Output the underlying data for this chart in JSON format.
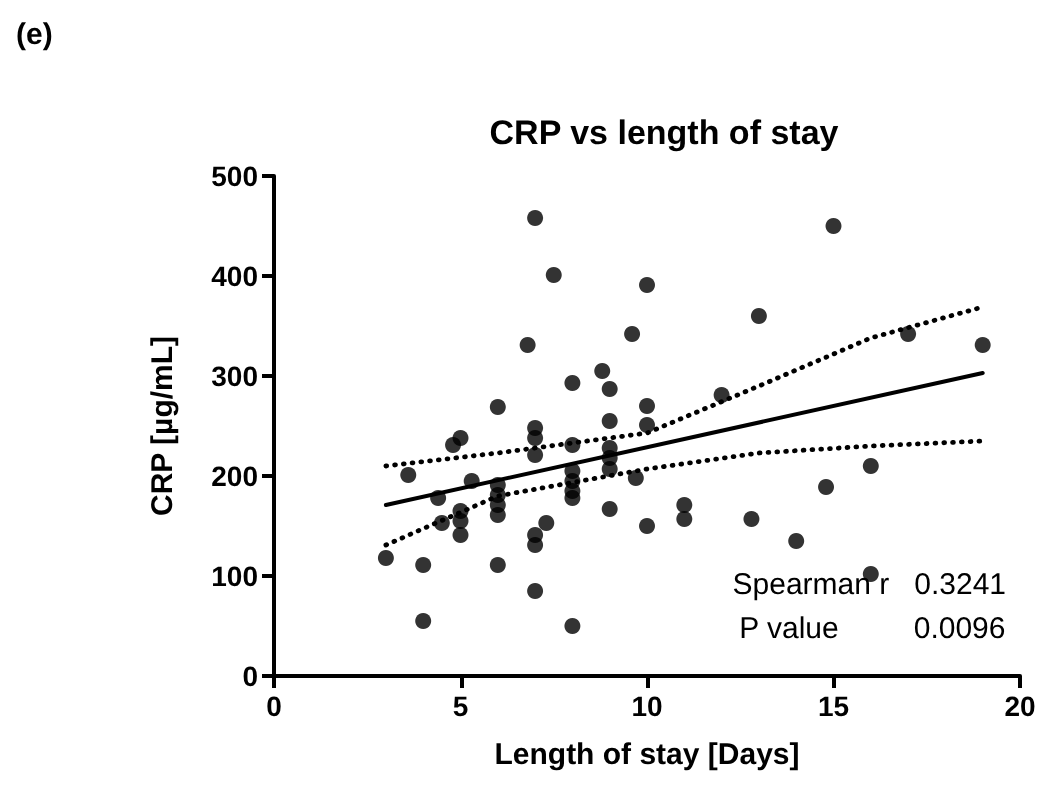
{
  "chart_data": {
    "type": "scatter",
    "title": "CRP vs length of stay",
    "xlabel": "Length of stay [Days]",
    "ylabel": "CRP [µg/mL]",
    "annotations": [
      "(e)",
      "Spearman r   0.3241",
      "P value         0.0096"
    ],
    "xlim": [
      0,
      20
    ],
    "xticks": [
      0,
      5,
      10,
      15,
      20
    ],
    "ylim": [
      0,
      500
    ],
    "yticks": [
      0,
      100,
      200,
      300,
      400,
      500
    ],
    "marker": "circle",
    "series": [
      {
        "color": "#000000",
        "x": [
          7,
          7.5,
          10,
          6.8,
          9.6,
          8,
          8.8,
          9,
          6,
          10,
          10,
          9,
          7,
          7,
          7,
          5,
          4.8,
          8,
          9,
          9,
          9,
          3.6,
          5.3,
          6,
          6,
          6,
          6,
          8,
          8,
          8,
          8,
          9.7,
          4.4,
          5,
          5,
          5,
          4.5,
          7.3,
          7,
          7,
          9,
          10,
          3,
          4,
          6,
          7,
          4,
          8,
          15,
          13,
          17,
          19,
          12,
          16,
          14.8,
          11,
          11,
          12.8,
          14,
          16
        ],
        "values": [
          458,
          401,
          391,
          331,
          342,
          293,
          305,
          287,
          269,
          270,
          251,
          255,
          248,
          238,
          221,
          238,
          231,
          231,
          228,
          218,
          207,
          201,
          195,
          191,
          181,
          171,
          161,
          205,
          195,
          185,
          178,
          198,
          178,
          165,
          155,
          141,
          153,
          153,
          141,
          131,
          167,
          150,
          118,
          111,
          111,
          85,
          55,
          50,
          450,
          360,
          342,
          331,
          281,
          210,
          189,
          171,
          157,
          157,
          135,
          102
        ]
      },
      {
        "type": "line",
        "color": "#000000",
        "line_style": "solid",
        "marker": "none",
        "x": [
          3,
          19
        ],
        "values": [
          171,
          303
        ]
      },
      {
        "type": "line",
        "color": "#000000",
        "line_style": "dotted",
        "marker": "none",
        "x": [
          3,
          6,
          10,
          13,
          16,
          19
        ],
        "values": [
          210,
          223,
          243,
          290,
          338,
          369
        ]
      },
      {
        "type": "line",
        "color": "#000000",
        "line_style": "dotted",
        "marker": "none",
        "x": [
          3,
          6,
          10,
          13,
          16,
          19
        ],
        "values": [
          131,
          180,
          207,
          223,
          230,
          235
        ]
      }
    ]
  }
}
